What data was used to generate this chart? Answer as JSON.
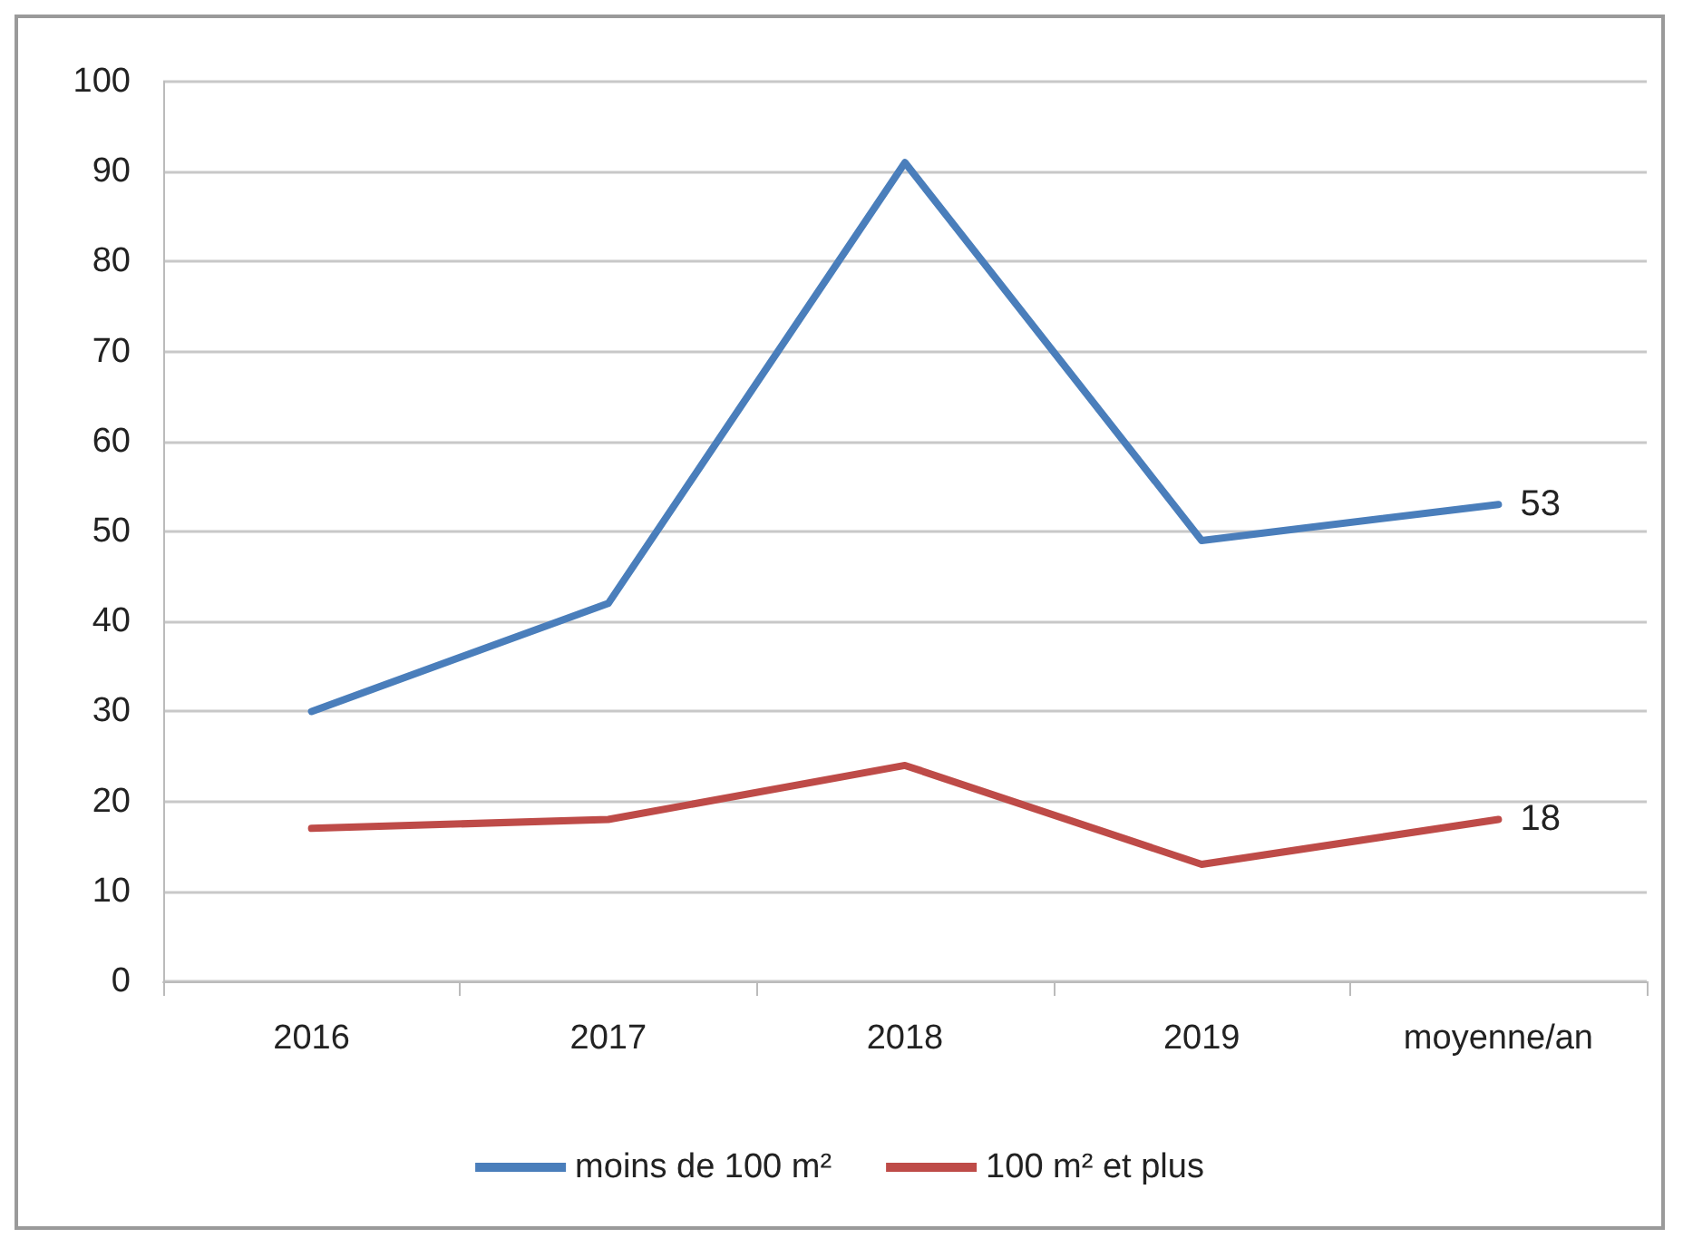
{
  "chart_data": {
    "type": "line",
    "categories": [
      "2016",
      "2017",
      "2018",
      "2019",
      "moyenne/an"
    ],
    "series": [
      {
        "name": "moins de 100 m²",
        "color": "#4a7ebb",
        "values": [
          30,
          42,
          91,
          49,
          53
        ],
        "value_labels": [
          null,
          null,
          null,
          null,
          "53"
        ]
      },
      {
        "name": "100 m² et plus",
        "color": "#be4b48",
        "values": [
          17,
          18,
          24,
          13,
          18
        ],
        "value_labels": [
          null,
          null,
          null,
          null,
          "18"
        ]
      }
    ],
    "ylim": [
      0,
      100
    ],
    "yticks": [
      0,
      10,
      20,
      30,
      40,
      50,
      60,
      70,
      80,
      90,
      100
    ],
    "grid": "y",
    "legend": "bottom",
    "marker": "none",
    "line_style": "solid"
  }
}
